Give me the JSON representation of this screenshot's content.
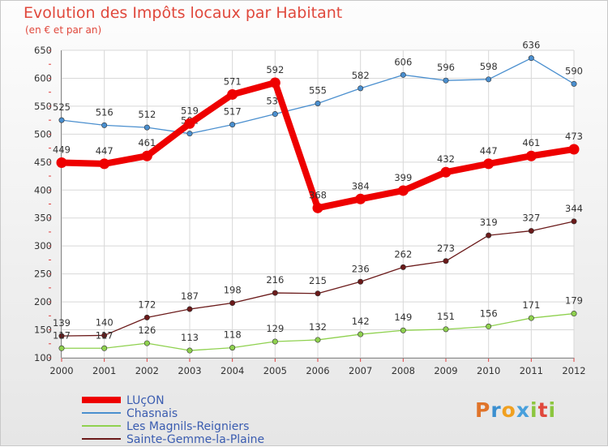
{
  "title": "Evolution des Impôts locaux par Habitant",
  "subtitle": "(en € et par an)",
  "logo": {
    "text": "Proxiti",
    "colors": [
      "#e0742a",
      "#3b8fd0",
      "#f0a020",
      "#48a0dc",
      "#8cc63f",
      "#e0483c",
      "#8cc63f"
    ]
  },
  "chart_data": {
    "type": "line",
    "x": [
      "2000",
      "2001",
      "2002",
      "2003",
      "2004",
      "2005",
      "2006",
      "2007",
      "2008",
      "2009",
      "2010",
      "2011",
      "2012"
    ],
    "ylim": [
      100,
      650
    ],
    "yticks": [
      100,
      150,
      200,
      250,
      300,
      350,
      400,
      450,
      500,
      550,
      600,
      650
    ],
    "grid": true,
    "legend_position": "bottom-left",
    "series": [
      {
        "name": "LUçON",
        "color": "#ee0000",
        "values": [
          449,
          447,
          461,
          519,
          571,
          592,
          368,
          384,
          399,
          432,
          447,
          461,
          473
        ]
      },
      {
        "name": "Chasnais",
        "color": "#4a8fcf",
        "values": [
          525,
          516,
          512,
          501,
          517,
          536,
          555,
          582,
          606,
          596,
          598,
          636,
          590
        ]
      },
      {
        "name": "Les Magnils-Reigniers",
        "color": "#8fd14f",
        "values": [
          117,
          117,
          126,
          113,
          118,
          129,
          132,
          142,
          149,
          151,
          156,
          171,
          179
        ]
      },
      {
        "name": "Sainte-Gemme-la-Plaine",
        "color": "#6b1a1a",
        "values": [
          139,
          140,
          172,
          187,
          198,
          216,
          215,
          236,
          262,
          273,
          319,
          327,
          344
        ]
      }
    ]
  }
}
